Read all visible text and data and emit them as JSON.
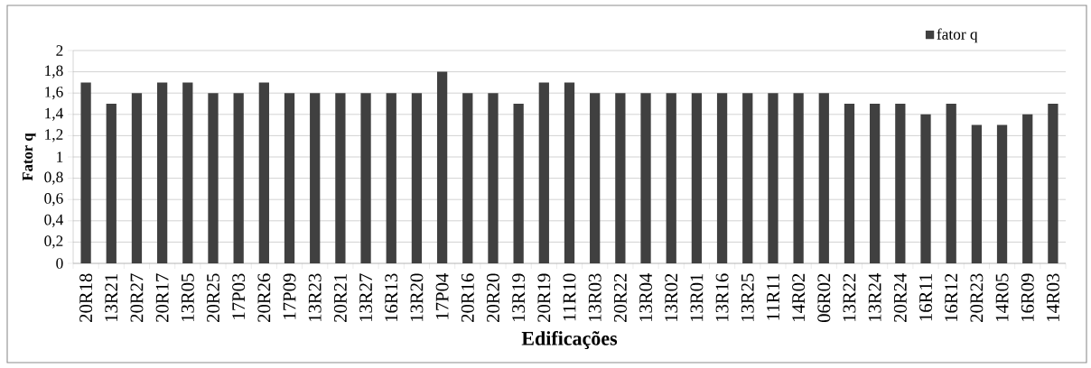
{
  "chart_data": {
    "type": "bar",
    "xlabel": "Edificações",
    "ylabel": "Fator q",
    "categories": [
      "20R18",
      "13R21",
      "20R27",
      "20R17",
      "13R05",
      "20R25",
      "17P03",
      "20R26",
      "17P09",
      "13R23",
      "20R21",
      "13R27",
      "16R13",
      "13R20",
      "17P04",
      "20R16",
      "20R20",
      "13R19",
      "20R19",
      "11R10",
      "13R03",
      "20R22",
      "13R04",
      "13R02",
      "13R01",
      "13R16",
      "13R25",
      "11R11",
      "14R02",
      "06R02",
      "13R22",
      "13R24",
      "20R24",
      "16R11",
      "16R12",
      "20R23",
      "14R05",
      "16R09",
      "14R03"
    ],
    "series": [
      {
        "name": "fator q",
        "color": "#404040",
        "values": [
          1.7,
          1.5,
          1.6,
          1.7,
          1.7,
          1.6,
          1.6,
          1.7,
          1.6,
          1.6,
          1.6,
          1.6,
          1.6,
          1.6,
          1.8,
          1.6,
          1.6,
          1.5,
          1.7,
          1.7,
          1.6,
          1.6,
          1.6,
          1.6,
          1.6,
          1.6,
          1.6,
          1.6,
          1.6,
          1.6,
          1.5,
          1.5,
          1.5,
          1.4,
          1.5,
          1.3,
          1.3,
          1.4,
          1.5
        ]
      }
    ],
    "ylim": [
      0,
      2
    ],
    "yticks": [
      0,
      {
        "value": 0.2,
        "label": "0,2"
      },
      {
        "value": 0.4,
        "label": "0,4"
      },
      {
        "value": 0.6,
        "label": "0,6"
      },
      {
        "value": 0.8,
        "label": "0,8"
      },
      1,
      {
        "value": 1.2,
        "label": "1,2"
      },
      {
        "value": 1.4,
        "label": "1,4"
      },
      {
        "value": 1.6,
        "label": "1,6"
      },
      {
        "value": 1.8,
        "label": "1,8"
      },
      2
    ],
    "grid": "y",
    "legend": "top right"
  }
}
